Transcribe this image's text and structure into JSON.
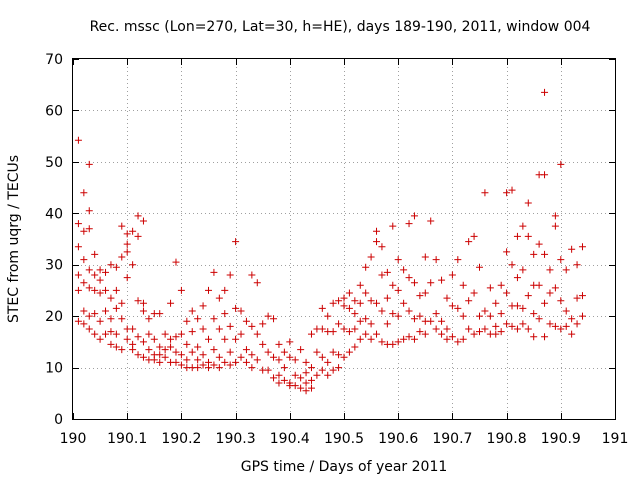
{
  "chart_data": {
    "type": "scatter",
    "title": "Rec. mssc (Lon=270, Lat=30, h=HE), days 189-190, 2011, window 004",
    "xlabel": "GPS time / Days of year 2011",
    "ylabel": "STEC from uqrg / TECUs",
    "xlim": [
      190,
      191
    ],
    "ylim": [
      0,
      70
    ],
    "xticks": [
      "190",
      "190.1",
      "190.2",
      "190.3",
      "190.4",
      "190.5",
      "190.6",
      "190.7",
      "190.8",
      "190.9",
      "191"
    ],
    "yticks": [
      "0",
      "10",
      "20",
      "30",
      "40",
      "50",
      "60",
      "70"
    ],
    "grid": true,
    "marker": "+",
    "color": "#cc0000",
    "points": [
      [
        190.01,
        54.2
      ],
      [
        190.01,
        38.0
      ],
      [
        190.01,
        33.5
      ],
      [
        190.01,
        28.0
      ],
      [
        190.01,
        25.0
      ],
      [
        190.01,
        19.0
      ],
      [
        190.02,
        44.0
      ],
      [
        190.02,
        36.5
      ],
      [
        190.02,
        31.0
      ],
      [
        190.02,
        26.5
      ],
      [
        190.02,
        21.0
      ],
      [
        190.02,
        18.5
      ],
      [
        190.03,
        49.5
      ],
      [
        190.03,
        40.5
      ],
      [
        190.03,
        37.0
      ],
      [
        190.03,
        29.0
      ],
      [
        190.03,
        25.5
      ],
      [
        190.03,
        20.0
      ],
      [
        190.03,
        17.5
      ],
      [
        190.04,
        32.0
      ],
      [
        190.04,
        28.0
      ],
      [
        190.04,
        25.0
      ],
      [
        190.04,
        20.5
      ],
      [
        190.04,
        16.5
      ],
      [
        190.05,
        29.0
      ],
      [
        190.05,
        27.0
      ],
      [
        190.05,
        24.5
      ],
      [
        190.05,
        19.0
      ],
      [
        190.05,
        15.5
      ],
      [
        190.06,
        28.5
      ],
      [
        190.06,
        25.0
      ],
      [
        190.06,
        21.0
      ],
      [
        190.06,
        16.5
      ],
      [
        190.07,
        30.0
      ],
      [
        190.07,
        23.5
      ],
      [
        190.07,
        19.5
      ],
      [
        190.07,
        17.0
      ],
      [
        190.07,
        14.5
      ],
      [
        190.08,
        29.5
      ],
      [
        190.08,
        25.0
      ],
      [
        190.08,
        21.5
      ],
      [
        190.08,
        16.5
      ],
      [
        190.08,
        14.0
      ],
      [
        190.09,
        37.5
      ],
      [
        190.09,
        31.5
      ],
      [
        190.09,
        22.5
      ],
      [
        190.09,
        19.5
      ],
      [
        190.09,
        13.5
      ],
      [
        190.1,
        36.0
      ],
      [
        190.1,
        34.0
      ],
      [
        190.1,
        32.5
      ],
      [
        190.1,
        27.5
      ],
      [
        190.1,
        17.5
      ],
      [
        190.1,
        15.5
      ],
      [
        190.11,
        36.5
      ],
      [
        190.11,
        30.0
      ],
      [
        190.11,
        17.5
      ],
      [
        190.11,
        14.5
      ],
      [
        190.11,
        13.5
      ],
      [
        190.12,
        39.5
      ],
      [
        190.12,
        35.5
      ],
      [
        190.12,
        23.0
      ],
      [
        190.12,
        16.0
      ],
      [
        190.12,
        12.5
      ],
      [
        190.13,
        38.5
      ],
      [
        190.13,
        22.5
      ],
      [
        190.13,
        21.0
      ],
      [
        190.13,
        15.0
      ],
      [
        190.13,
        12.0
      ],
      [
        190.14,
        19.5
      ],
      [
        190.14,
        16.5
      ],
      [
        190.14,
        13.5
      ],
      [
        190.14,
        11.5
      ],
      [
        190.15,
        20.5
      ],
      [
        190.15,
        15.5
      ],
      [
        190.15,
        12.5
      ],
      [
        190.15,
        11.5
      ],
      [
        190.16,
        20.5
      ],
      [
        190.16,
        14.0
      ],
      [
        190.16,
        12.5
      ],
      [
        190.16,
        11.0
      ],
      [
        190.17,
        16.5
      ],
      [
        190.17,
        13.5
      ],
      [
        190.17,
        12.0
      ],
      [
        190.18,
        22.5
      ],
      [
        190.18,
        15.5
      ],
      [
        190.18,
        14.0
      ],
      [
        190.18,
        11.0
      ],
      [
        190.19,
        30.5
      ],
      [
        190.19,
        16.0
      ],
      [
        190.19,
        13.0
      ],
      [
        190.19,
        11.0
      ],
      [
        190.2,
        25.0
      ],
      [
        190.2,
        16.5
      ],
      [
        190.2,
        12.5
      ],
      [
        190.2,
        10.5
      ],
      [
        190.21,
        19.0
      ],
      [
        190.21,
        14.5
      ],
      [
        190.21,
        11.5
      ],
      [
        190.21,
        10.0
      ],
      [
        190.22,
        21.0
      ],
      [
        190.22,
        17.0
      ],
      [
        190.22,
        13.0
      ],
      [
        190.22,
        10.0
      ],
      [
        190.23,
        19.5
      ],
      [
        190.23,
        14.0
      ],
      [
        190.23,
        11.5
      ],
      [
        190.23,
        10.0
      ],
      [
        190.24,
        22.0
      ],
      [
        190.24,
        17.5
      ],
      [
        190.24,
        12.5
      ],
      [
        190.24,
        10.5
      ],
      [
        190.25,
        25.0
      ],
      [
        190.25,
        15.5
      ],
      [
        190.25,
        11.0
      ],
      [
        190.25,
        10.0
      ],
      [
        190.26,
        28.5
      ],
      [
        190.26,
        19.5
      ],
      [
        190.26,
        13.5
      ],
      [
        190.26,
        10.5
      ],
      [
        190.27,
        23.5
      ],
      [
        190.27,
        17.5
      ],
      [
        190.27,
        12.0
      ],
      [
        190.27,
        10.0
      ],
      [
        190.28,
        25.0
      ],
      [
        190.28,
        20.5
      ],
      [
        190.28,
        15.5
      ],
      [
        190.28,
        11.0
      ],
      [
        190.29,
        28.0
      ],
      [
        190.29,
        18.0
      ],
      [
        190.29,
        13.0
      ],
      [
        190.29,
        10.5
      ],
      [
        190.3,
        34.5
      ],
      [
        190.3,
        21.5
      ],
      [
        190.3,
        15.5
      ],
      [
        190.3,
        11.0
      ],
      [
        190.31,
        21.0
      ],
      [
        190.31,
        16.5
      ],
      [
        190.31,
        12.0
      ],
      [
        190.32,
        19.0
      ],
      [
        190.32,
        13.5
      ],
      [
        190.32,
        11.0
      ],
      [
        190.33,
        28.0
      ],
      [
        190.33,
        18.0
      ],
      [
        190.33,
        12.5
      ],
      [
        190.33,
        10.0
      ],
      [
        190.34,
        26.5
      ],
      [
        190.34,
        16.5
      ],
      [
        190.34,
        11.5
      ],
      [
        190.35,
        18.5
      ],
      [
        190.35,
        14.5
      ],
      [
        190.35,
        9.5
      ],
      [
        190.36,
        20.0
      ],
      [
        190.36,
        13.0
      ],
      [
        190.36,
        9.5
      ],
      [
        190.37,
        19.5
      ],
      [
        190.37,
        12.0
      ],
      [
        190.37,
        8.0
      ],
      [
        190.38,
        14.5
      ],
      [
        190.38,
        11.5
      ],
      [
        190.38,
        8.5
      ],
      [
        190.38,
        7.0
      ],
      [
        190.39,
        13.0
      ],
      [
        190.39,
        10.0
      ],
      [
        190.39,
        7.5
      ],
      [
        190.4,
        15.0
      ],
      [
        190.4,
        12.0
      ],
      [
        190.4,
        7.0
      ],
      [
        190.4,
        6.5
      ],
      [
        190.41,
        11.5
      ],
      [
        190.41,
        8.5
      ],
      [
        190.41,
        6.5
      ],
      [
        190.42,
        13.5
      ],
      [
        190.42,
        8.0
      ],
      [
        190.42,
        6.0
      ],
      [
        190.43,
        11.0
      ],
      [
        190.43,
        9.0
      ],
      [
        190.43,
        7.0
      ],
      [
        190.43,
        5.5
      ],
      [
        190.44,
        16.5
      ],
      [
        190.44,
        10.0
      ],
      [
        190.44,
        7.5
      ],
      [
        190.44,
        6.0
      ],
      [
        190.45,
        17.5
      ],
      [
        190.45,
        13.0
      ],
      [
        190.45,
        8.5
      ],
      [
        190.46,
        21.5
      ],
      [
        190.46,
        17.5
      ],
      [
        190.46,
        12.0
      ],
      [
        190.46,
        9.5
      ],
      [
        190.47,
        20.0
      ],
      [
        190.47,
        17.0
      ],
      [
        190.47,
        11.0
      ],
      [
        190.47,
        8.5
      ],
      [
        190.48,
        22.5
      ],
      [
        190.48,
        17.0
      ],
      [
        190.48,
        13.0
      ],
      [
        190.48,
        9.5
      ],
      [
        190.49,
        23.0
      ],
      [
        190.49,
        18.5
      ],
      [
        190.49,
        12.5
      ],
      [
        190.49,
        10.0
      ],
      [
        190.5,
        23.5
      ],
      [
        190.5,
        22.0
      ],
      [
        190.5,
        17.5
      ],
      [
        190.5,
        12.0
      ],
      [
        190.51,
        24.5
      ],
      [
        190.51,
        21.5
      ],
      [
        190.51,
        17.0
      ],
      [
        190.51,
        13.0
      ],
      [
        190.52,
        23.0
      ],
      [
        190.52,
        20.5
      ],
      [
        190.52,
        17.5
      ],
      [
        190.52,
        14.0
      ],
      [
        190.53,
        26.0
      ],
      [
        190.53,
        22.5
      ],
      [
        190.53,
        19.0
      ],
      [
        190.53,
        15.5
      ],
      [
        190.54,
        29.5
      ],
      [
        190.54,
        24.5
      ],
      [
        190.54,
        19.5
      ],
      [
        190.54,
        16.5
      ],
      [
        190.55,
        31.5
      ],
      [
        190.55,
        23.0
      ],
      [
        190.55,
        18.5
      ],
      [
        190.55,
        15.5
      ],
      [
        190.56,
        36.5
      ],
      [
        190.56,
        34.5
      ],
      [
        190.56,
        22.5
      ],
      [
        190.56,
        16.5
      ],
      [
        190.57,
        33.5
      ],
      [
        190.57,
        28.0
      ],
      [
        190.57,
        21.0
      ],
      [
        190.57,
        15.0
      ],
      [
        190.58,
        28.5
      ],
      [
        190.58,
        23.5
      ],
      [
        190.58,
        18.5
      ],
      [
        190.58,
        14.5
      ],
      [
        190.59,
        37.5
      ],
      [
        190.59,
        26.0
      ],
      [
        190.59,
        20.5
      ],
      [
        190.59,
        14.5
      ],
      [
        190.6,
        31.0
      ],
      [
        190.6,
        25.0
      ],
      [
        190.6,
        20.0
      ],
      [
        190.6,
        15.0
      ],
      [
        190.61,
        29.0
      ],
      [
        190.61,
        22.5
      ],
      [
        190.61,
        15.5
      ],
      [
        190.62,
        38.0
      ],
      [
        190.62,
        27.5
      ],
      [
        190.62,
        21.0
      ],
      [
        190.62,
        16.0
      ],
      [
        190.63,
        39.5
      ],
      [
        190.63,
        26.5
      ],
      [
        190.63,
        19.5
      ],
      [
        190.63,
        15.5
      ],
      [
        190.64,
        24.0
      ],
      [
        190.64,
        20.0
      ],
      [
        190.64,
        17.0
      ],
      [
        190.65,
        31.5
      ],
      [
        190.65,
        24.5
      ],
      [
        190.65,
        19.0
      ],
      [
        190.65,
        16.5
      ],
      [
        190.66,
        38.5
      ],
      [
        190.66,
        26.5
      ],
      [
        190.66,
        19.0
      ],
      [
        190.67,
        31.0
      ],
      [
        190.67,
        20.5
      ],
      [
        190.67,
        17.5
      ],
      [
        190.68,
        27.0
      ],
      [
        190.68,
        19.0
      ],
      [
        190.68,
        16.5
      ],
      [
        190.69,
        23.5
      ],
      [
        190.69,
        17.5
      ],
      [
        190.69,
        15.5
      ],
      [
        190.7,
        28.0
      ],
      [
        190.7,
        22.0
      ],
      [
        190.7,
        16.0
      ],
      [
        190.71,
        31.0
      ],
      [
        190.71,
        21.5
      ],
      [
        190.71,
        15.0
      ],
      [
        190.72,
        26.0
      ],
      [
        190.72,
        20.0
      ],
      [
        190.72,
        15.5
      ],
      [
        190.73,
        34.5
      ],
      [
        190.73,
        23.0
      ],
      [
        190.73,
        17.5
      ],
      [
        190.74,
        35.5
      ],
      [
        190.74,
        24.5
      ],
      [
        190.74,
        16.5
      ],
      [
        190.75,
        29.5
      ],
      [
        190.75,
        20.0
      ],
      [
        190.75,
        17.0
      ],
      [
        190.76,
        44.0
      ],
      [
        190.76,
        21.0
      ],
      [
        190.76,
        17.5
      ],
      [
        190.77,
        25.5
      ],
      [
        190.77,
        20.0
      ],
      [
        190.77,
        16.5
      ],
      [
        190.78,
        22.5
      ],
      [
        190.78,
        18.0
      ],
      [
        190.78,
        16.5
      ],
      [
        190.79,
        26.0
      ],
      [
        190.79,
        20.5
      ],
      [
        190.79,
        17.0
      ],
      [
        190.8,
        44.0
      ],
      [
        190.8,
        32.5
      ],
      [
        190.8,
        24.5
      ],
      [
        190.8,
        18.5
      ],
      [
        190.81,
        44.5
      ],
      [
        190.81,
        30.0
      ],
      [
        190.81,
        22.0
      ],
      [
        190.81,
        18.0
      ],
      [
        190.82,
        35.5
      ],
      [
        190.82,
        27.5
      ],
      [
        190.82,
        22.0
      ],
      [
        190.82,
        17.5
      ],
      [
        190.83,
        37.5
      ],
      [
        190.83,
        29.0
      ],
      [
        190.83,
        21.5
      ],
      [
        190.83,
        18.5
      ],
      [
        190.84,
        42.0
      ],
      [
        190.84,
        35.5
      ],
      [
        190.84,
        24.0
      ],
      [
        190.84,
        17.5
      ],
      [
        190.85,
        32.0
      ],
      [
        190.85,
        26.0
      ],
      [
        190.85,
        20.5
      ],
      [
        190.85,
        16.0
      ],
      [
        190.86,
        47.5
      ],
      [
        190.86,
        34.0
      ],
      [
        190.86,
        26.0
      ],
      [
        190.86,
        19.5
      ],
      [
        190.87,
        63.5
      ],
      [
        190.87,
        47.5
      ],
      [
        190.87,
        32.0
      ],
      [
        190.87,
        22.5
      ],
      [
        190.87,
        16.0
      ],
      [
        190.88,
        29.0
      ],
      [
        190.88,
        24.5
      ],
      [
        190.88,
        18.5
      ],
      [
        190.89,
        39.5
      ],
      [
        190.89,
        37.5
      ],
      [
        190.89,
        25.5
      ],
      [
        190.89,
        18.0
      ],
      [
        190.9,
        49.5
      ],
      [
        190.9,
        31.0
      ],
      [
        190.9,
        23.0
      ],
      [
        190.9,
        17.5
      ],
      [
        190.91,
        29.0
      ],
      [
        190.91,
        21.0
      ],
      [
        190.91,
        18.0
      ],
      [
        190.92,
        33.0
      ],
      [
        190.92,
        19.5
      ],
      [
        190.92,
        16.5
      ],
      [
        190.93,
        30.0
      ],
      [
        190.93,
        23.5
      ],
      [
        190.93,
        18.5
      ],
      [
        190.94,
        33.5
      ],
      [
        190.94,
        24.0
      ],
      [
        190.94,
        20.0
      ]
    ]
  }
}
